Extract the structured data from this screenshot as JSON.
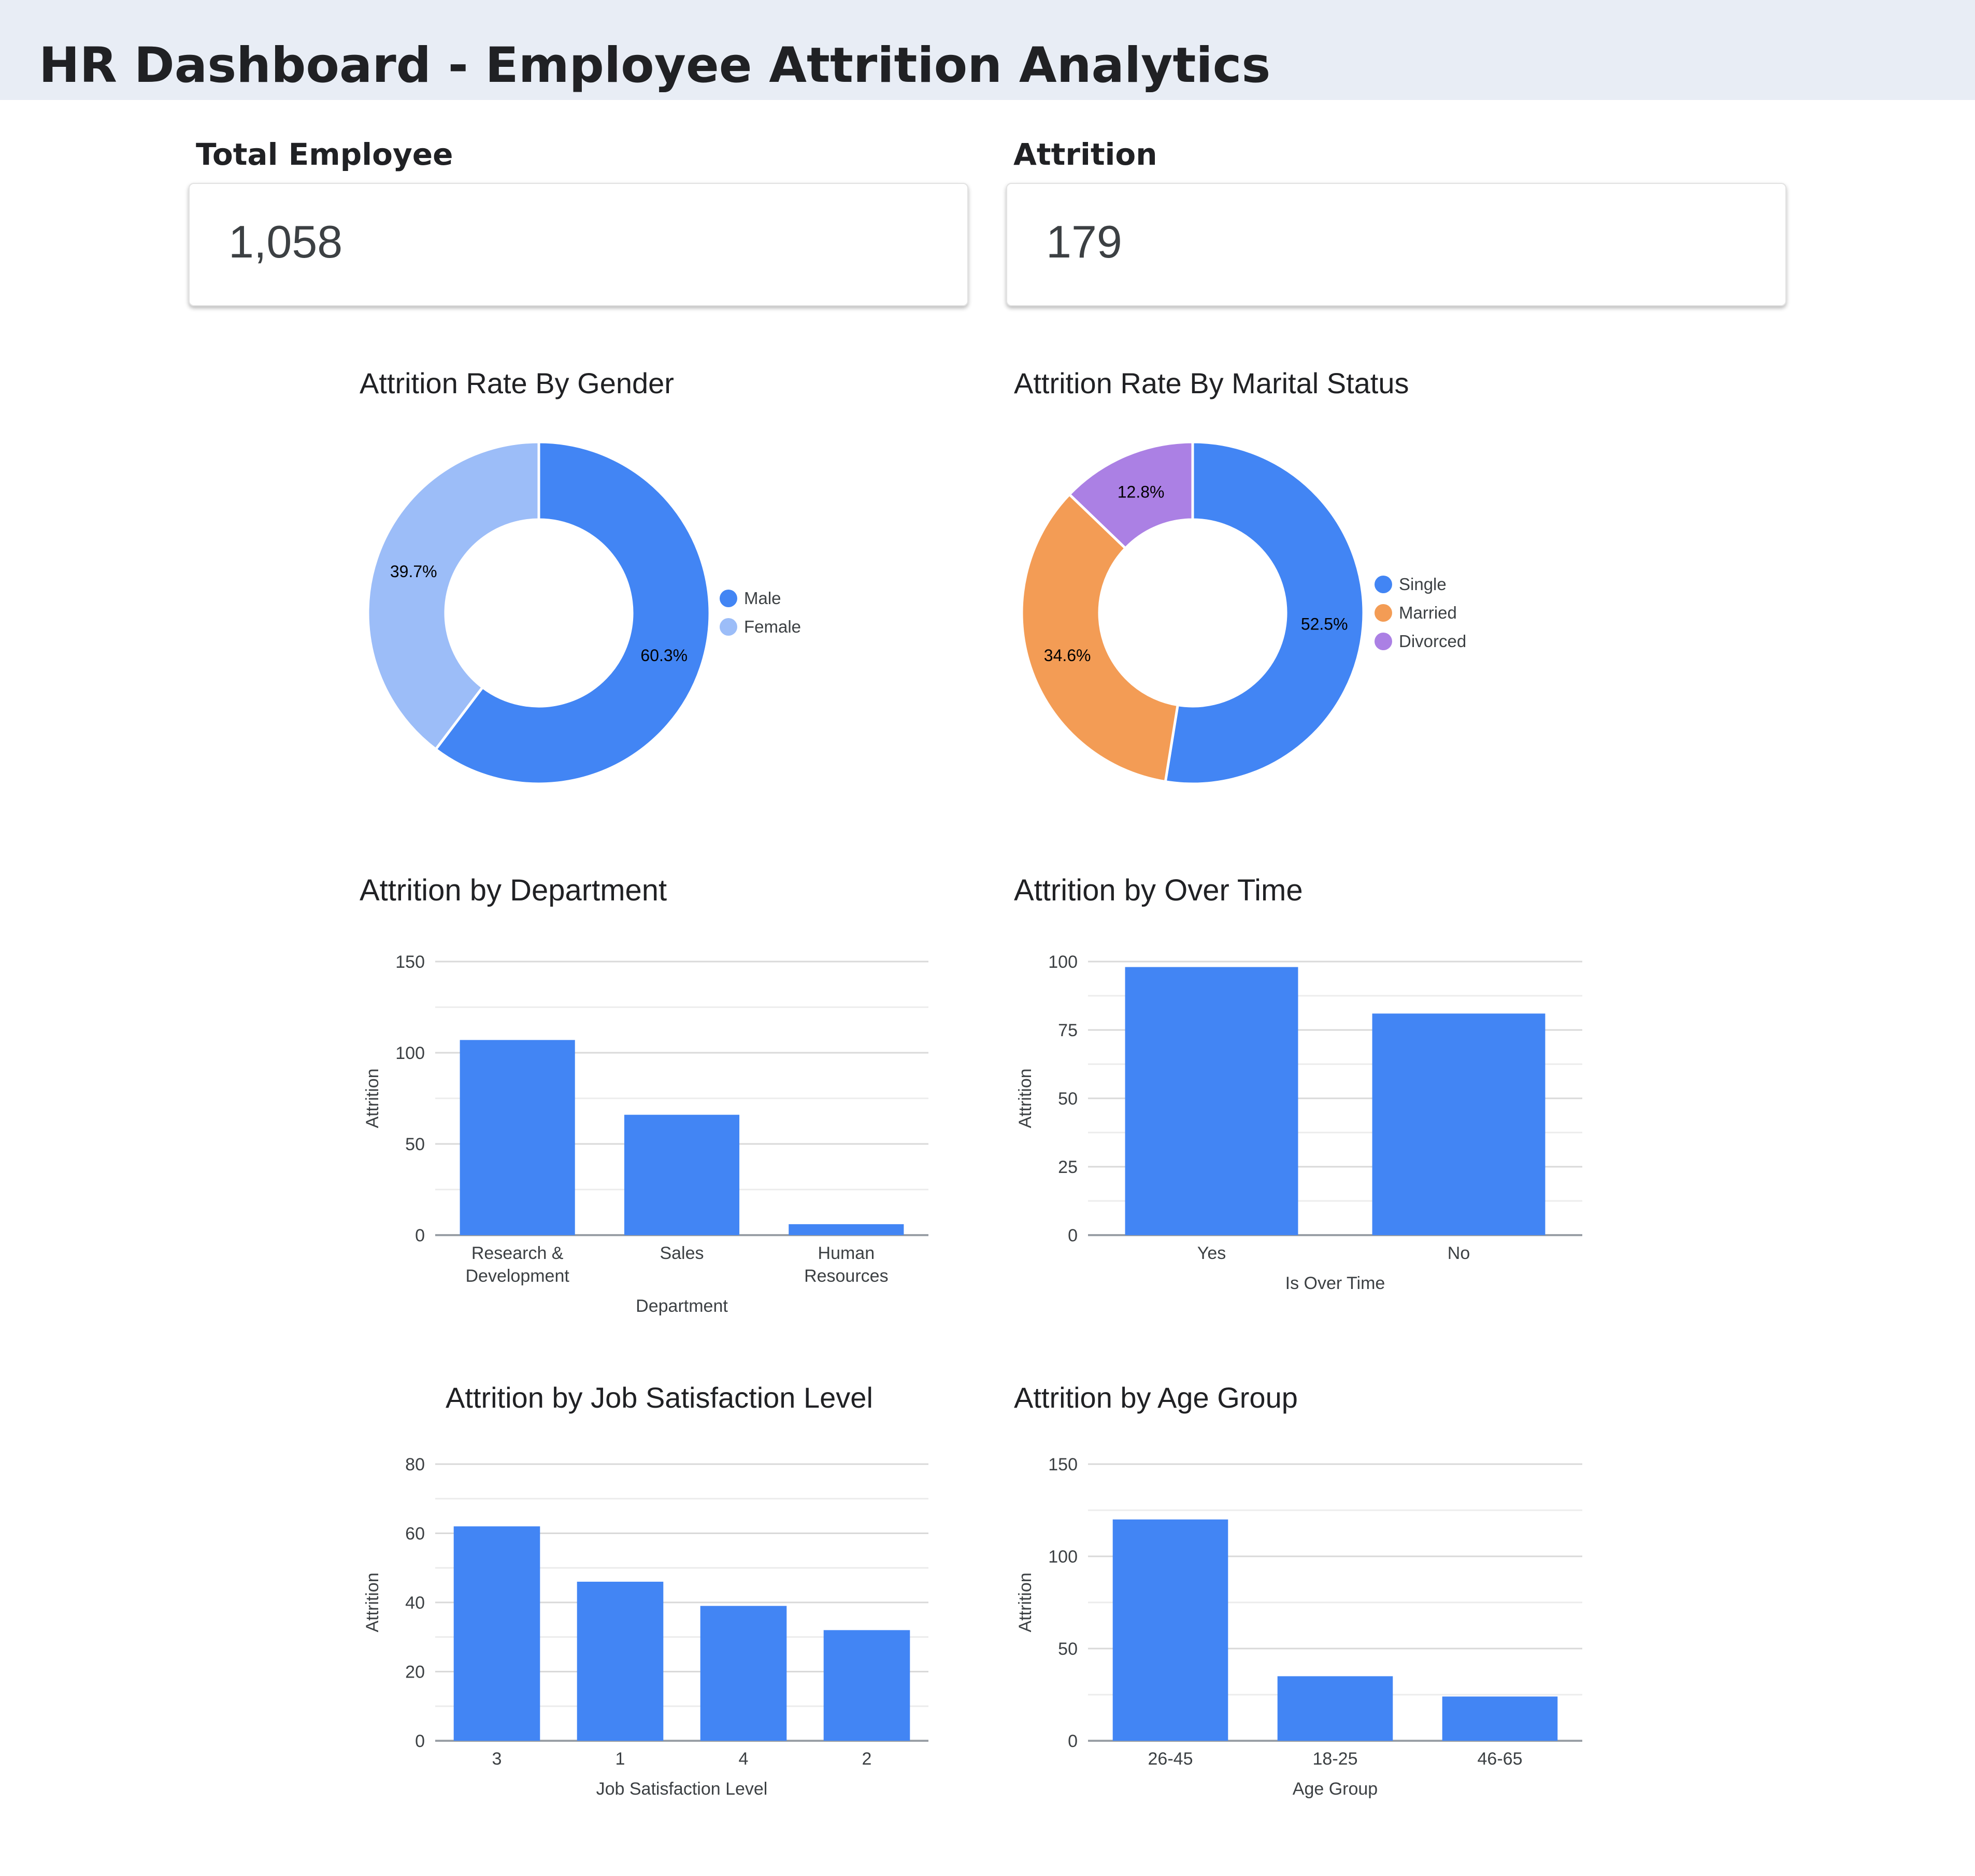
{
  "dashboard": {
    "title": "HR Dashboard - Employee Attrition Analytics"
  },
  "kpis": {
    "total_employee": {
      "label": "Total Employee",
      "value": "1,058"
    },
    "attrition": {
      "label": "Attrition",
      "value": "179"
    }
  },
  "colors": {
    "bar": "#4285f4",
    "gender": [
      "#4285f4",
      "#9cbdf8"
    ],
    "marital": [
      "#4285f4",
      "#f39c55",
      "#ab80e4"
    ],
    "grid": "#d9d9d9",
    "axis": "#9aa0a6"
  },
  "chart_data": [
    {
      "id": "gender",
      "type": "pie",
      "title": "Attrition Rate By Gender",
      "labels": [
        "Male",
        "Female"
      ],
      "values": [
        60.3,
        39.7
      ],
      "value_labels": [
        "60.3%",
        "39.7%"
      ],
      "donut": true,
      "legend": "right"
    },
    {
      "id": "marital",
      "type": "pie",
      "title": "Attrition Rate By Marital Status",
      "labels": [
        "Single",
        "Married",
        "Divorced"
      ],
      "values": [
        52.5,
        34.6,
        12.8
      ],
      "value_labels": [
        "52.5%",
        "34.6%",
        "12.8%"
      ],
      "donut": true,
      "legend": "right"
    },
    {
      "id": "department",
      "type": "bar",
      "title": "Attrition by Department",
      "categories": [
        [
          "Research &",
          "Development"
        ],
        [
          "Sales"
        ],
        [
          "Human",
          "Resources"
        ]
      ],
      "values": [
        107,
        66,
        6
      ],
      "xlabel": "Department",
      "ylabel": "Attrition",
      "ylim": [
        0,
        150
      ],
      "yticks": [
        0,
        50,
        100,
        150
      ],
      "ytick_labels": [
        "0",
        "50",
        "100",
        "150"
      ],
      "grid": true
    },
    {
      "id": "overtime",
      "type": "bar",
      "title": "Attrition by Over Time",
      "categories": [
        [
          "Yes"
        ],
        [
          "No"
        ]
      ],
      "values": [
        98,
        81
      ],
      "xlabel": "Is Over Time",
      "ylabel": "Attrition",
      "ylim": [
        0,
        100
      ],
      "yticks": [
        0,
        25,
        50,
        75,
        100
      ],
      "ytick_labels": [
        "0",
        "25",
        "50",
        "75",
        "100"
      ],
      "grid": true
    },
    {
      "id": "satisfaction",
      "type": "bar",
      "title": "Attrition by Job Satisfaction Level",
      "categories": [
        [
          "3"
        ],
        [
          "1"
        ],
        [
          "4"
        ],
        [
          "2"
        ]
      ],
      "values": [
        62,
        46,
        39,
        32
      ],
      "xlabel": "Job Satisfaction Level",
      "ylabel": "Attrition",
      "ylim": [
        0,
        80
      ],
      "yticks": [
        0,
        20,
        40,
        60,
        80
      ],
      "ytick_labels": [
        "0",
        "20",
        "40",
        "60",
        "80"
      ],
      "grid": true
    },
    {
      "id": "age",
      "type": "bar",
      "title": "Attrition by Age Group",
      "categories": [
        [
          "26-45"
        ],
        [
          "18-25"
        ],
        [
          "46-65"
        ]
      ],
      "values": [
        120,
        35,
        24
      ],
      "xlabel": "Age Group",
      "ylabel": "Attrition",
      "ylim": [
        0,
        150
      ],
      "yticks": [
        0,
        50,
        100,
        150
      ],
      "ytick_labels": [
        "0",
        "50",
        "100",
        "150"
      ],
      "grid": true
    }
  ]
}
